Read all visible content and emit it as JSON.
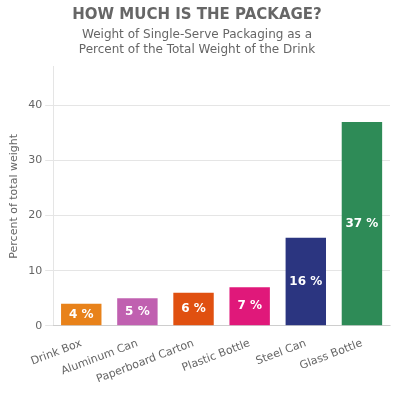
{
  "chart_data": {
    "type": "bar",
    "title": "HOW MUCH IS THE PACKAGE?",
    "subtitle": "Weight of Single-Serve Packaging as a\nPercent of the Total Weight of the Drink",
    "categories": [
      "Drink Box",
      "Aluminum Can",
      "Paperboard Carton",
      "Plastic Bottle",
      "Steel Can",
      "Glass Bottle"
    ],
    "values": [
      4,
      5,
      6,
      7,
      16,
      37
    ],
    "value_labels": [
      "4 %",
      "5 %",
      "6 %",
      "7 %",
      "16 %",
      "37 %"
    ],
    "colors": [
      "#E8821A",
      "#C060B0",
      "#E05010",
      "#E0187A",
      "#2B3580",
      "#2E8B57"
    ],
    "ylabel": "Percent of total weight",
    "ylim": [
      0,
      47
    ],
    "yticks": [
      0,
      10,
      20,
      30,
      40
    ],
    "grid": true,
    "data_labels": true
  }
}
